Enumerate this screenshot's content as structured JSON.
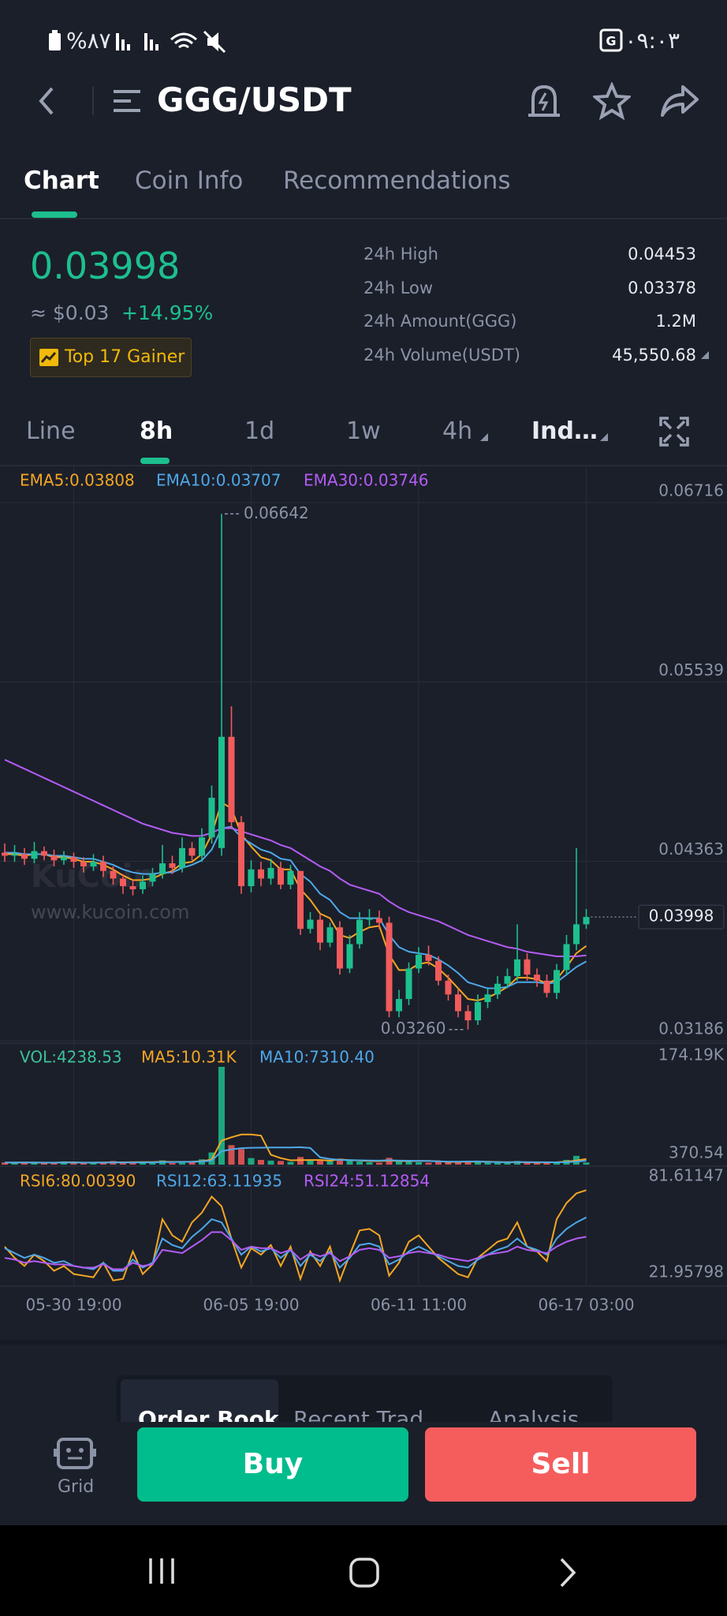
{
  "status_bar": {
    "battery": "%٨٧",
    "time": "٠٩:٠٣"
  },
  "header": {
    "pair": "GGG/USDT"
  },
  "tabs": [
    "Chart",
    "Coin Info",
    "Recommendations"
  ],
  "ticker": {
    "price": "0.03998",
    "fiat": "≈ $0.03",
    "change": "+14.95%",
    "badge": "Top 17 Gainer",
    "stats": [
      {
        "label": "24h High",
        "value": "0.04453"
      },
      {
        "label": "24h Low",
        "value": "0.03378"
      },
      {
        "label": "24h Amount(GGG)",
        "value": "1.2M"
      },
      {
        "label": "24h Volume(USDT)",
        "value": "45,550.68"
      }
    ]
  },
  "timeframes": [
    "Line",
    "8h",
    "1d",
    "1w",
    "4h",
    "Ind…"
  ],
  "chart_data": [
    {
      "type": "candlestick",
      "categories": [
        null,
        null,
        null,
        null,
        null,
        null,
        null,
        "05-30 19:00",
        null,
        null,
        null,
        null,
        null,
        null,
        null,
        null,
        null,
        null,
        null,
        null,
        null,
        null,
        null,
        null,
        null,
        "06-05 19:00",
        null,
        null,
        null,
        null,
        null,
        null,
        null,
        null,
        null,
        null,
        null,
        null,
        null,
        null,
        null,
        null,
        "06-11 11:00",
        null,
        null,
        null,
        null,
        null,
        null,
        null,
        null,
        null,
        null,
        null,
        null,
        null,
        null,
        null,
        null,
        "06-17 03:00"
      ],
      "open": [
        0.0442,
        0.044,
        0.0441,
        0.0438,
        0.0443,
        0.044,
        0.0437,
        0.0439,
        0.0436,
        0.0433,
        0.0436,
        0.043,
        0.0425,
        0.042,
        0.0418,
        0.0423,
        0.0428,
        0.0435,
        0.0432,
        0.0445,
        0.044,
        0.0452,
        0.0445,
        0.0518,
        0.0462,
        0.042,
        0.0431,
        0.0425,
        0.0432,
        0.0421,
        0.043,
        0.0392,
        0.0398,
        0.0383,
        0.0393,
        0.0366,
        0.0382,
        0.0398,
        0.0399,
        0.0396,
        0.0338,
        0.0346,
        0.0366,
        0.0375,
        0.0371,
        0.0358,
        0.0349,
        0.0338,
        0.0332,
        0.0344,
        0.0349,
        0.0356,
        0.0361,
        0.0372,
        0.0362,
        0.0358,
        0.035,
        0.0365,
        0.0382,
        0.0395
      ],
      "high": [
        0.0448,
        0.0447,
        0.0445,
        0.0449,
        0.0446,
        0.0444,
        0.0443,
        0.0442,
        0.0439,
        0.0441,
        0.044,
        0.0433,
        0.0428,
        0.0424,
        0.0427,
        0.0432,
        0.0447,
        0.044,
        0.0452,
        0.0449,
        0.0458,
        0.0486,
        0.06642,
        0.0538,
        0.0466,
        0.0437,
        0.0436,
        0.0438,
        0.0436,
        0.0434,
        0.043,
        0.0403,
        0.0402,
        0.0396,
        0.0397,
        0.0388,
        0.0403,
        0.0405,
        0.0404,
        0.04,
        0.0352,
        0.037,
        0.038,
        0.0381,
        0.0374,
        0.0362,
        0.0353,
        0.0342,
        0.0349,
        0.0353,
        0.0361,
        0.0366,
        0.0395,
        0.0376,
        0.0366,
        0.0362,
        0.0369,
        0.0388,
        0.0445,
        0.0405
      ],
      "low": [
        0.0436,
        0.0436,
        0.0434,
        0.0435,
        0.0437,
        0.0433,
        0.0434,
        0.0432,
        0.0429,
        0.043,
        0.0426,
        0.0421,
        0.0415,
        0.0414,
        0.0415,
        0.042,
        0.0425,
        0.0428,
        0.0429,
        0.0437,
        0.0436,
        0.0448,
        0.044,
        0.0458,
        0.0415,
        0.0416,
        0.042,
        0.0421,
        0.0418,
        0.0418,
        0.0388,
        0.0389,
        0.0378,
        0.038,
        0.0362,
        0.0363,
        0.0379,
        0.0394,
        0.0392,
        0.0334,
        0.0334,
        0.0342,
        0.0363,
        0.0368,
        0.0355,
        0.0345,
        0.0334,
        0.0326,
        0.0329,
        0.034,
        0.0346,
        0.0353,
        0.0358,
        0.0358,
        0.0354,
        0.0347,
        0.0346,
        0.0362,
        0.0378,
        0.0392
      ],
      "close": [
        0.044,
        0.0441,
        0.0438,
        0.0443,
        0.044,
        0.0437,
        0.0439,
        0.0436,
        0.0433,
        0.0436,
        0.043,
        0.0425,
        0.042,
        0.0418,
        0.0423,
        0.0428,
        0.0435,
        0.0432,
        0.0445,
        0.044,
        0.0452,
        0.0478,
        0.0518,
        0.0462,
        0.042,
        0.0431,
        0.0425,
        0.0432,
        0.0421,
        0.043,
        0.0392,
        0.0398,
        0.0383,
        0.0393,
        0.0366,
        0.0382,
        0.0398,
        0.0399,
        0.0396,
        0.0338,
        0.0346,
        0.0366,
        0.0375,
        0.0371,
        0.0358,
        0.0349,
        0.0338,
        0.0332,
        0.0344,
        0.0349,
        0.0356,
        0.0361,
        0.0372,
        0.0362,
        0.0358,
        0.035,
        0.0365,
        0.0382,
        0.0395,
        0.03998
      ],
      "up_color": "#1dbf8e",
      "down_color": "#f15b5b",
      "series": [
        {
          "name": "EMA5:0.03808",
          "color": "#f5a623",
          "values": [
            0.0441,
            0.0441,
            0.044,
            0.0441,
            0.0441,
            0.0439,
            0.0439,
            0.0438,
            0.0436,
            0.0436,
            0.0434,
            0.0431,
            0.0427,
            0.0424,
            0.0424,
            0.0425,
            0.0428,
            0.043,
            0.0435,
            0.0436,
            0.0441,
            0.0454,
            0.0475,
            0.0471,
            0.0454,
            0.0446,
            0.0439,
            0.0437,
            0.0431,
            0.0431,
            0.0418,
            0.0411,
            0.0402,
            0.0399,
            0.0388,
            0.0386,
            0.039,
            0.0393,
            0.0394,
            0.0375,
            0.0365,
            0.0365,
            0.0369,
            0.037,
            0.0366,
            0.036,
            0.0353,
            0.0346,
            0.0345,
            0.0347,
            0.035,
            0.0354,
            0.036,
            0.036,
            0.0359,
            0.0356,
            0.0359,
            0.0367,
            0.0376,
            0.03808
          ]
        },
        {
          "name": "EMA10:0.03707",
          "color": "#4ea8e8",
          "values": [
            0.0442,
            0.0442,
            0.0441,
            0.0441,
            0.0441,
            0.044,
            0.044,
            0.0439,
            0.0438,
            0.0438,
            0.0436,
            0.0434,
            0.0431,
            0.0429,
            0.0428,
            0.0428,
            0.0429,
            0.0429,
            0.0432,
            0.0434,
            0.0437,
            0.0444,
            0.0458,
            0.0459,
            0.0452,
            0.0448,
            0.0444,
            0.0442,
            0.0438,
            0.0437,
            0.0428,
            0.0423,
            0.0415,
            0.0411,
            0.0403,
            0.0399,
            0.0399,
            0.0399,
            0.0399,
            0.0388,
            0.038,
            0.0377,
            0.0376,
            0.0375,
            0.0372,
            0.0368,
            0.0363,
            0.0357,
            0.0355,
            0.0353,
            0.0353,
            0.0354,
            0.0357,
            0.0357,
            0.0357,
            0.0356,
            0.0357,
            0.0362,
            0.0367,
            0.03707
          ]
        },
        {
          "name": "EMA30:0.03746",
          "color": "#b45cf5",
          "values": [
            0.0503,
            0.05,
            0.0497,
            0.0494,
            0.0491,
            0.0488,
            0.0485,
            0.0482,
            0.0479,
            0.0476,
            0.0473,
            0.047,
            0.0467,
            0.0464,
            0.0461,
            0.0459,
            0.0457,
            0.0455,
            0.0454,
            0.0453,
            0.0453,
            0.0455,
            0.0458,
            0.0458,
            0.0456,
            0.0454,
            0.0452,
            0.045,
            0.0447,
            0.0445,
            0.0441,
            0.0437,
            0.0433,
            0.043,
            0.0425,
            0.0421,
            0.0419,
            0.0417,
            0.0415,
            0.041,
            0.0406,
            0.0403,
            0.0401,
            0.0399,
            0.0397,
            0.0394,
            0.0391,
            0.0388,
            0.0386,
            0.0384,
            0.0382,
            0.038,
            0.0379,
            0.0377,
            0.0376,
            0.0375,
            0.0374,
            0.0374,
            0.0374,
            0.03746
          ]
        }
      ],
      "ylim": [
        0.03186,
        0.06716
      ],
      "yticks": [
        0.06716,
        0.05539,
        0.04363,
        0.03186
      ],
      "grid": true,
      "high_label": "0.06642",
      "low_label": "0.03260",
      "last_price_label": "0.03998",
      "watermark": {
        "logo": "KuCoin",
        "url": "www.kucoin.com"
      }
    },
    {
      "type": "bar",
      "series": [
        {
          "name": "VOL:4238.53",
          "type": "bar",
          "color": "#3cc29a",
          "values": [
            4200,
            3800,
            5100,
            3500,
            2900,
            4400,
            6100,
            3300,
            2800,
            3900,
            5200,
            6800,
            4100,
            3600,
            5500,
            4700,
            7900,
            3200,
            6400,
            5800,
            9800,
            22000,
            174190,
            35000,
            28000,
            12000,
            8800,
            7600,
            6900,
            5400,
            14000,
            9100,
            7200,
            6600,
            11000,
            8300,
            5900,
            4700,
            3800,
            12500,
            7700,
            6100,
            4900,
            3900,
            5600,
            4800,
            6200,
            7100,
            5300,
            4400,
            3700,
            4100,
            6900,
            3600,
            3300,
            4600,
            5800,
            8900,
            16000,
            4238.53
          ]
        },
        {
          "name": "MA5:10.31K",
          "type": "line",
          "color": "#f5a623",
          "values": [
            4100,
            4000,
            4200,
            4100,
            3900,
            3900,
            4400,
            4500,
            3900,
            4100,
            4300,
            4600,
            4600,
            4700,
            5000,
            5000,
            5600,
            5300,
            5500,
            5600,
            6600,
            9400,
            43000,
            49000,
            54000,
            54000,
            52000,
            18000,
            12000,
            8100,
            8500,
            8600,
            8600,
            7500,
            9600,
            8400,
            7800,
            6900,
            6700,
            7400,
            7000,
            6600,
            7000,
            7000,
            6500,
            5100,
            5300,
            5600,
            5800,
            5600,
            5100,
            4700,
            4900,
            4500,
            4300,
            4400,
            4800,
            5600,
            7700,
            10310
          ]
        },
        {
          "name": "MA10:7310.40",
          "type": "line",
          "color": "#4ea8e8",
          "values": [
            4300,
            4200,
            4200,
            4150,
            4050,
            4000,
            4150,
            4150,
            4000,
            4000,
            4100,
            4400,
            4300,
            4300,
            4450,
            4450,
            5000,
            4900,
            5250,
            5450,
            5900,
            7400,
            24300,
            27500,
            29700,
            30400,
            30500,
            30900,
            30900,
            30900,
            31300,
            30000,
            13300,
            10500,
            8800,
            8400,
            8100,
            7800,
            7500,
            8200,
            7600,
            7300,
            7100,
            6800,
            6200,
            5800,
            5800,
            6000,
            6100,
            5300,
            4900,
            4700,
            4900,
            4900,
            4700,
            4700,
            4600,
            4800,
            5800,
            7310.4
          ]
        }
      ],
      "ylim": [
        370.54,
        174190
      ],
      "yticks": [
        {
          "value": 174190,
          "label": "174.19K"
        },
        370.54
      ],
      "grid": false
    },
    {
      "type": "line",
      "series": [
        {
          "name": "RSI6:80.00390",
          "color": "#f5a623",
          "values": [
            45,
            38,
            33,
            40,
            36,
            30,
            33,
            28,
            27,
            26,
            35,
            24,
            25,
            42,
            28,
            34,
            62,
            52,
            48,
            60,
            66,
            76,
            70,
            50,
            32,
            44,
            40,
            46,
            33,
            45,
            25,
            42,
            33,
            45,
            24,
            40,
            55,
            56,
            52,
            27,
            35,
            48,
            52,
            45,
            38,
            33,
            28,
            26,
            38,
            43,
            48,
            50,
            60,
            45,
            42,
            36,
            62,
            72,
            78,
            80.0039
          ]
        },
        {
          "name": "RSI12:63.11935",
          "color": "#4ea8e8",
          "values": [
            44,
            41,
            38,
            40,
            38,
            35,
            36,
            33,
            32,
            31,
            35,
            30,
            30,
            37,
            32,
            35,
            50,
            46,
            44,
            51,
            56,
            62,
            60,
            50,
            40,
            45,
            42,
            44,
            38,
            43,
            33,
            40,
            36,
            42,
            32,
            38,
            46,
            47,
            45,
            34,
            37,
            42,
            45,
            42,
            39,
            36,
            33,
            32,
            37,
            40,
            43,
            45,
            50,
            45,
            43,
            40,
            50,
            56,
            60,
            63.11935
          ]
        },
        {
          "name": "RSI24:51.12854",
          "color": "#b45cf5",
          "values": [
            38,
            37,
            35,
            36,
            35,
            34,
            34,
            33,
            32,
            32,
            34,
            31,
            31,
            35,
            33,
            34,
            43,
            42,
            41,
            45,
            49,
            54,
            54,
            49,
            43,
            45,
            44,
            44,
            41,
            43,
            37,
            41,
            39,
            41,
            36,
            39,
            43,
            44,
            43,
            38,
            39,
            41,
            42,
            41,
            40,
            38,
            37,
            36,
            38,
            40,
            41,
            42,
            45,
            43,
            42,
            41,
            45,
            48,
            50,
            51.12854
          ]
        }
      ],
      "ylim": [
        21.95798,
        81.61147
      ],
      "yticks": [
        81.61147,
        21.95798
      ],
      "grid": false
    }
  ],
  "order_tabs": [
    "Order Book",
    "Recent Trad",
    "Analysis"
  ],
  "actions": {
    "grid": "Grid",
    "buy": "Buy",
    "sell": "Sell"
  }
}
